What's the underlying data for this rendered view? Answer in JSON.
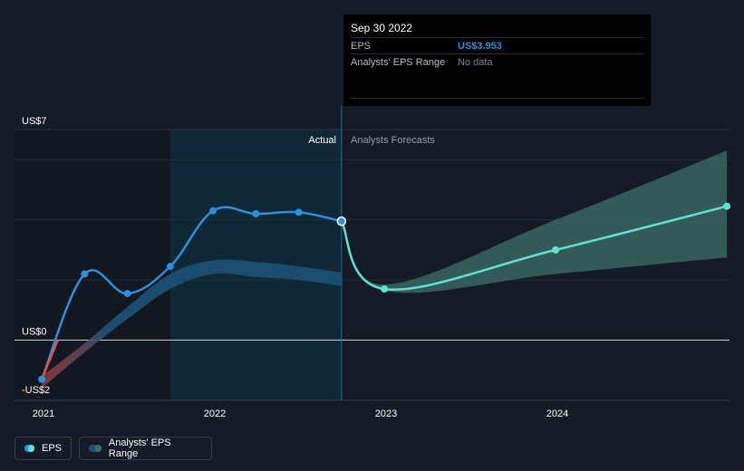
{
  "tooltip": {
    "date": "Sep 30 2022",
    "eps_label": "EPS",
    "eps_value": "US$3.953",
    "range_label": "Analysts' EPS Range",
    "range_value": "No data"
  },
  "section_labels": {
    "actual": "Actual",
    "forecast": "Analysts Forecasts"
  },
  "legend": {
    "eps": "EPS",
    "range": "Analysts' EPS Range"
  },
  "colors": {
    "eps_actual": "#2f8fdc",
    "eps_negative": "#e0514b",
    "eps_forecast": "#5fe3d0",
    "range_band": "#1c4f73",
    "forecast_band": "#3d6f6b",
    "highlight_region": "#0e2a38"
  },
  "chart_data": {
    "type": "line",
    "ylim": [
      -2,
      7
    ],
    "y_ticks": [
      {
        "value": 7,
        "label": "US$7"
      },
      {
        "value": 0,
        "label": "US$0"
      },
      {
        "value": -2,
        "label": "-US$2"
      }
    ],
    "x_ticks": [
      {
        "value": 2021.0,
        "label": "2021"
      },
      {
        "value": 2022.0,
        "label": "2022"
      },
      {
        "value": 2023.0,
        "label": "2023"
      },
      {
        "value": 2024.0,
        "label": "2024"
      }
    ],
    "highlighted_date": "Sep 30 2022",
    "series": [
      {
        "name": "EPS",
        "points": [
          {
            "x": 2020.99,
            "y": -1.3
          },
          {
            "x": 2021.24,
            "y": 2.2
          },
          {
            "x": 2021.49,
            "y": 1.55
          },
          {
            "x": 2021.74,
            "y": 2.45
          },
          {
            "x": 2021.99,
            "y": 4.3
          },
          {
            "x": 2022.24,
            "y": 4.2
          },
          {
            "x": 2022.49,
            "y": 4.25
          },
          {
            "x": 2022.74,
            "y": 3.953
          }
        ]
      },
      {
        "name": "EPS",
        "points": [
          {
            "x": 2022.74,
            "y": 3.953
          },
          {
            "x": 2022.99,
            "y": 1.7
          },
          {
            "x": 2023.99,
            "y": 3.0
          },
          {
            "x": 2024.99,
            "y": 4.45
          }
        ]
      }
    ],
    "analyst_range_history": {
      "name": "Analysts' EPS Range",
      "x": [
        2020.99,
        2021.24,
        2021.49,
        2021.74,
        2021.99,
        2022.24,
        2022.49,
        2022.74
      ],
      "low": [
        -1.6,
        -0.4,
        0.7,
        1.7,
        2.2,
        2.1,
        2.0,
        1.8
      ],
      "high": [
        -1.2,
        -0.1,
        1.1,
        2.2,
        2.65,
        2.6,
        2.45,
        2.25
      ]
    },
    "analyst_range_forecast": {
      "x": [
        2022.74,
        2022.99,
        2023.99,
        2024.99
      ],
      "low": [
        3.9,
        1.65,
        2.2,
        2.75
      ],
      "high": [
        3.95,
        1.85,
        4.0,
        6.3
      ]
    }
  }
}
